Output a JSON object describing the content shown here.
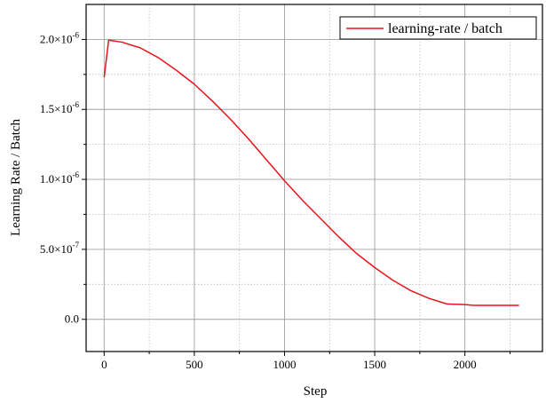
{
  "chart_data": {
    "type": "line",
    "title": "",
    "xlabel": "Step",
    "ylabel": "Learning Rate / Batch",
    "xlim": [
      -100,
      2430
    ],
    "ylim": [
      -2.3e-07,
      2.25e-06
    ],
    "x_ticks": [
      0,
      500,
      1000,
      1500,
      2000
    ],
    "x_tick_labels": [
      "0",
      "500",
      "1000",
      "1500",
      "2000"
    ],
    "y_ticks": [
      0,
      5e-07,
      1e-06,
      1.5e-06,
      2e-06
    ],
    "y_tick_labels": [
      {
        "mantissa": "0.0",
        "exp": ""
      },
      {
        "mantissa": "5.0×10",
        "exp": "-7"
      },
      {
        "mantissa": "1.0×10",
        "exp": "-6"
      },
      {
        "mantissa": "1.5×10",
        "exp": "-6"
      },
      {
        "mantissa": "2.0×10",
        "exp": "-6"
      }
    ],
    "grid": true,
    "legend_position": "top-right",
    "series": [
      {
        "name": "learning-rate / batch",
        "color": "#e8141c",
        "x": [
          0,
          25,
          100,
          200,
          300,
          400,
          500,
          600,
          700,
          800,
          900,
          1000,
          1100,
          1200,
          1300,
          1400,
          1500,
          1600,
          1700,
          1800,
          1900,
          2000,
          2050,
          2100,
          2150,
          2200,
          2300
        ],
        "y": [
          1.73e-06,
          1.995e-06,
          1.98e-06,
          1.94e-06,
          1.87e-06,
          1.78e-06,
          1.68e-06,
          1.56e-06,
          1.43e-06,
          1.29e-06,
          1.14e-06,
          9.9e-07,
          8.5e-07,
          7.2e-07,
          5.9e-07,
          4.7e-07,
          3.7e-07,
          2.8e-07,
          2.05e-07,
          1.5e-07,
          1.1e-07,
          1.05e-07,
          1e-07,
          1e-07,
          1e-07,
          1e-07,
          1e-07
        ]
      }
    ]
  }
}
